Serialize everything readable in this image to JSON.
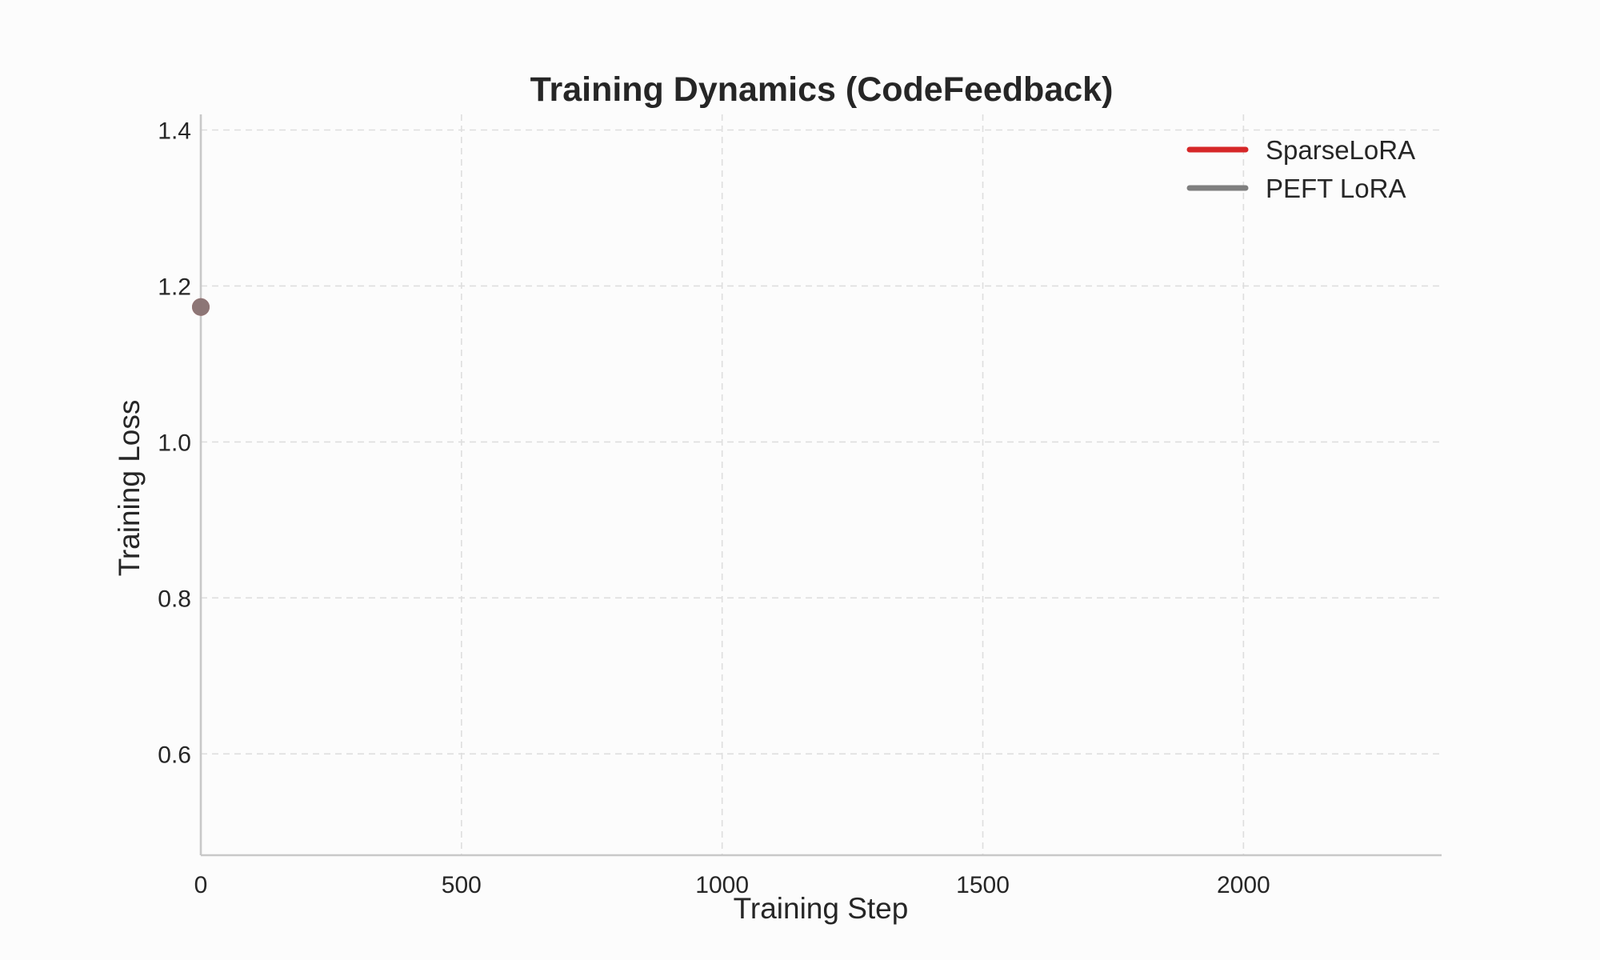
{
  "chart_data": {
    "type": "line",
    "title": "Training Dynamics (CodeFeedback)",
    "xlabel": "Training Step",
    "ylabel": "Training Loss",
    "xlim": [
      0,
      2380
    ],
    "ylim": [
      0.47,
      1.42
    ],
    "x_ticks": [
      0,
      500,
      1000,
      1500,
      2000
    ],
    "y_ticks": [
      0.6,
      0.8,
      1.0,
      1.2,
      1.4
    ],
    "x_tick_labels": [
      "0",
      "500",
      "1000",
      "1500",
      "2000"
    ],
    "y_tick_labels": [
      "0.6",
      "0.8",
      "1.0",
      "1.2",
      "1.4"
    ],
    "grid": true,
    "legend_position": "top-right",
    "series": [
      {
        "name": "SparseLoRA",
        "color": "#d62728",
        "x": [
          0
        ],
        "y": [
          1.173
        ]
      },
      {
        "name": "PEFT LoRA",
        "color": "#7f7f7f",
        "x": [
          0
        ],
        "y": [
          1.173
        ]
      }
    ]
  }
}
